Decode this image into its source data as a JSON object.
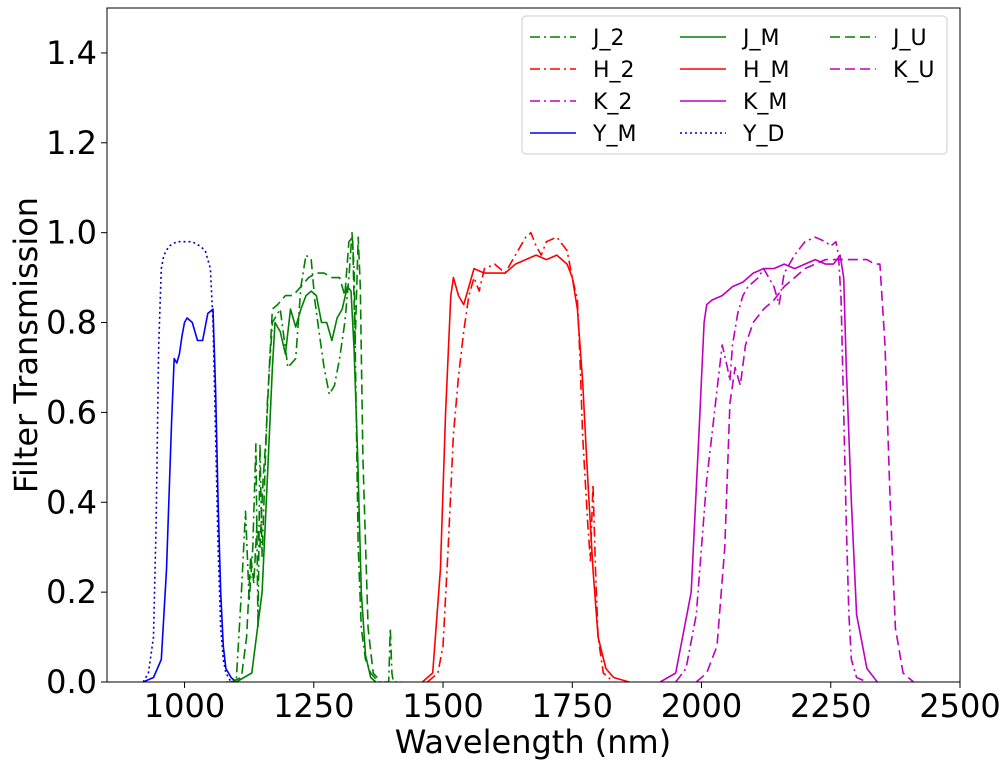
{
  "chart_data": {
    "type": "line",
    "title": "",
    "xlabel": "Wavelength (nm)",
    "ylabel": "Filter Transmission",
    "xlim": [
      850,
      2500
    ],
    "ylim": [
      0.0,
      1.5
    ],
    "xticks": [
      1000,
      1250,
      1500,
      1750,
      2000,
      2250,
      2500
    ],
    "yticks": [
      0.0,
      0.2,
      0.4,
      0.6,
      0.8,
      1.0,
      1.2,
      1.4
    ],
    "ytick_labels": [
      "0.0",
      "0.2",
      "0.4",
      "0.6",
      "0.8",
      "1.0",
      "1.2",
      "1.4"
    ],
    "grid": false,
    "legend": {
      "position": "top-right",
      "columns": 3
    },
    "series": [
      {
        "name": "J_2",
        "color": "#008000",
        "style": "dashdot",
        "x": [
          1080,
          1100,
          1110,
          1118,
          1125,
          1132,
          1138,
          1142,
          1146,
          1150,
          1155,
          1160,
          1170,
          1185,
          1200,
          1215,
          1225,
          1235,
          1245,
          1252,
          1260,
          1270,
          1280,
          1290,
          1300,
          1310,
          1318,
          1324,
          1328,
          1332,
          1336,
          1342,
          1350,
          1360,
          1375,
          1395,
          1398,
          1401,
          1404,
          1420
        ],
        "y": [
          0.0,
          0.0,
          0.2,
          0.38,
          0.18,
          0.3,
          0.53,
          0.12,
          0.53,
          0.28,
          0.45,
          0.62,
          0.8,
          0.83,
          0.7,
          0.72,
          0.88,
          0.95,
          0.94,
          0.85,
          0.78,
          0.7,
          0.64,
          0.66,
          0.72,
          0.8,
          0.9,
          1.0,
          0.92,
          0.6,
          0.3,
          0.12,
          0.05,
          0.02,
          0.0,
          0.0,
          0.12,
          0.02,
          0.0,
          0.0
        ]
      },
      {
        "name": "H_2",
        "color": "#ff0000",
        "style": "dashdot",
        "x": [
          1470,
          1490,
          1500,
          1510,
          1520,
          1530,
          1540,
          1550,
          1560,
          1570,
          1580,
          1600,
          1620,
          1640,
          1660,
          1670,
          1680,
          1690,
          1700,
          1720,
          1740,
          1750,
          1760,
          1765,
          1770,
          1780,
          1785,
          1790,
          1795,
          1800,
          1810,
          1830
        ],
        "y": [
          0.0,
          0.02,
          0.08,
          0.3,
          0.55,
          0.68,
          0.78,
          0.86,
          0.9,
          0.87,
          0.92,
          0.93,
          0.91,
          0.95,
          0.99,
          1.0,
          0.97,
          0.95,
          0.98,
          0.99,
          0.96,
          0.9,
          0.85,
          0.72,
          0.55,
          0.35,
          0.27,
          0.44,
          0.25,
          0.1,
          0.02,
          0.0
        ]
      },
      {
        "name": "K_2",
        "color": "#bf00bf",
        "style": "dashdot",
        "x": [
          1950,
          1970,
          1990,
          2000,
          2010,
          2020,
          2030,
          2040,
          2050,
          2055,
          2060,
          2070,
          2080,
          2090,
          2100,
          2110,
          2120,
          2140,
          2150,
          2160,
          2180,
          2200,
          2220,
          2240,
          2250,
          2260,
          2265,
          2270,
          2275,
          2280,
          2285,
          2290,
          2300,
          2320
        ],
        "y": [
          0.0,
          0.03,
          0.15,
          0.3,
          0.45,
          0.55,
          0.65,
          0.75,
          0.7,
          0.67,
          0.75,
          0.82,
          0.86,
          0.88,
          0.89,
          0.9,
          0.92,
          0.88,
          0.84,
          0.91,
          0.95,
          0.98,
          0.99,
          0.98,
          0.97,
          0.98,
          0.95,
          0.85,
          0.6,
          0.35,
          0.15,
          0.05,
          0.01,
          0.0
        ]
      },
      {
        "name": "Y_M",
        "color": "#0000ff",
        "style": "solid",
        "x": [
          920,
          940,
          955,
          965,
          975,
          980,
          985,
          990,
          995,
          1000,
          1005,
          1015,
          1025,
          1035,
          1045,
          1055,
          1060,
          1065,
          1070,
          1075,
          1080,
          1090,
          1100
        ],
        "y": [
          0.0,
          0.01,
          0.05,
          0.25,
          0.58,
          0.72,
          0.71,
          0.73,
          0.77,
          0.8,
          0.81,
          0.8,
          0.76,
          0.76,
          0.82,
          0.83,
          0.65,
          0.4,
          0.2,
          0.08,
          0.03,
          0.01,
          0.0
        ]
      },
      {
        "name": "J_M",
        "color": "#008000",
        "style": "solid",
        "x": [
          1100,
          1130,
          1150,
          1160,
          1170,
          1175,
          1185,
          1195,
          1205,
          1215,
          1225,
          1235,
          1245,
          1255,
          1265,
          1275,
          1285,
          1295,
          1305,
          1315,
          1322,
          1328,
          1335,
          1342,
          1350,
          1360,
          1370
        ],
        "y": [
          0.0,
          0.02,
          0.2,
          0.45,
          0.7,
          0.8,
          0.78,
          0.73,
          0.83,
          0.79,
          0.83,
          0.86,
          0.87,
          0.86,
          0.8,
          0.8,
          0.76,
          0.81,
          0.83,
          0.88,
          0.87,
          0.74,
          0.5,
          0.2,
          0.06,
          0.01,
          0.0
        ]
      },
      {
        "name": "H_M",
        "color": "#ff0000",
        "style": "solid",
        "x": [
          1460,
          1480,
          1495,
          1505,
          1515,
          1520,
          1530,
          1540,
          1550,
          1560,
          1580,
          1600,
          1620,
          1640,
          1660,
          1680,
          1700,
          1720,
          1740,
          1750,
          1760,
          1770,
          1780,
          1790,
          1800,
          1815,
          1830,
          1860
        ],
        "y": [
          0.0,
          0.02,
          0.25,
          0.6,
          0.86,
          0.9,
          0.86,
          0.84,
          0.88,
          0.92,
          0.91,
          0.91,
          0.91,
          0.93,
          0.94,
          0.95,
          0.94,
          0.95,
          0.93,
          0.9,
          0.83,
          0.67,
          0.45,
          0.25,
          0.1,
          0.03,
          0.01,
          0.0
        ]
      },
      {
        "name": "K_M",
        "color": "#bf00bf",
        "style": "solid",
        "x": [
          1920,
          1950,
          1980,
          1995,
          2005,
          2010,
          2020,
          2040,
          2060,
          2080,
          2100,
          2120,
          2140,
          2160,
          2180,
          2200,
          2220,
          2240,
          2255,
          2262,
          2268,
          2275,
          2280,
          2290,
          2300,
          2320,
          2340
        ],
        "y": [
          0.0,
          0.02,
          0.2,
          0.55,
          0.8,
          0.84,
          0.85,
          0.86,
          0.88,
          0.89,
          0.91,
          0.92,
          0.92,
          0.93,
          0.92,
          0.93,
          0.94,
          0.93,
          0.93,
          0.94,
          0.95,
          0.9,
          0.7,
          0.4,
          0.15,
          0.03,
          0.0
        ]
      },
      {
        "name": "Y_D",
        "color": "#0000bf",
        "style": "dotted",
        "x": [
          920,
          930,
          940,
          945,
          950,
          955,
          960,
          970,
          985,
          1000,
          1015,
          1030,
          1040,
          1050,
          1055,
          1060,
          1065,
          1070,
          1075,
          1080,
          1090,
          1100
        ],
        "y": [
          0.0,
          0.02,
          0.1,
          0.35,
          0.75,
          0.92,
          0.95,
          0.97,
          0.98,
          0.98,
          0.98,
          0.97,
          0.96,
          0.92,
          0.8,
          0.55,
          0.3,
          0.12,
          0.05,
          0.02,
          0.0,
          0.0
        ]
      },
      {
        "name": "J_U",
        "color": "#008000",
        "style": "dashed",
        "x": [
          1090,
          1110,
          1120,
          1128,
          1134,
          1140,
          1146,
          1152,
          1158,
          1164,
          1170,
          1180,
          1195,
          1210,
          1225,
          1240,
          1255,
          1270,
          1285,
          1300,
          1310,
          1318,
          1325,
          1330,
          1336,
          1340,
          1345,
          1355,
          1365,
          1380
        ],
        "y": [
          0.0,
          0.01,
          0.1,
          0.28,
          0.22,
          0.35,
          0.3,
          0.45,
          0.55,
          0.7,
          0.83,
          0.84,
          0.86,
          0.86,
          0.88,
          0.9,
          0.91,
          0.91,
          0.9,
          0.9,
          0.86,
          0.98,
          0.99,
          0.75,
          0.99,
          0.88,
          0.5,
          0.12,
          0.02,
          0.0
        ]
      },
      {
        "name": "K_U",
        "color": "#bf00bf",
        "style": "dashed",
        "x": [
          1990,
          2010,
          2030,
          2045,
          2055,
          2065,
          2075,
          2085,
          2100,
          2120,
          2140,
          2160,
          2180,
          2200,
          2220,
          2240,
          2260,
          2280,
          2300,
          2320,
          2335,
          2345,
          2355,
          2365,
          2375,
          2390,
          2410
        ],
        "y": [
          0.0,
          0.02,
          0.08,
          0.3,
          0.62,
          0.7,
          0.66,
          0.75,
          0.8,
          0.83,
          0.85,
          0.88,
          0.9,
          0.92,
          0.93,
          0.94,
          0.94,
          0.94,
          0.94,
          0.94,
          0.93,
          0.93,
          0.75,
          0.4,
          0.12,
          0.02,
          0.0
        ]
      }
    ]
  }
}
